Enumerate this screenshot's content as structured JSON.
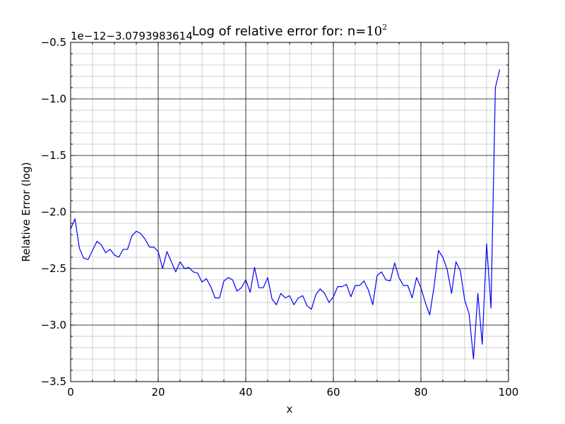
{
  "chart_data": {
    "type": "line",
    "title_prefix": "Log of relative error for: n=",
    "title_base": "10",
    "title_exponent": "2",
    "xlabel": "x",
    "ylabel": "Relative Error (log)",
    "y_offset_label": "1e−12−3.0793983614",
    "xlim": [
      0,
      100
    ],
    "ylim": [
      -3.5,
      -0.5
    ],
    "x_ticks": [
      0,
      20,
      40,
      60,
      80,
      100
    ],
    "x_tick_labels": [
      "0",
      "20",
      "40",
      "60",
      "80",
      "100"
    ],
    "y_ticks": [
      -3.5,
      -3.0,
      -2.5,
      -2.0,
      -1.5,
      -1.0,
      -0.5
    ],
    "y_tick_labels": [
      "−3.5",
      "−3.0",
      "−2.5",
      "−2.0",
      "−1.5",
      "−1.0",
      "−0.5"
    ],
    "grid": true,
    "series": [
      {
        "color": "#0000ff",
        "x": [
          0,
          1,
          2,
          3,
          4,
          5,
          6,
          7,
          8,
          9,
          10,
          11,
          12,
          13,
          14,
          15,
          16,
          17,
          18,
          19,
          20,
          21,
          22,
          23,
          24,
          25,
          26,
          27,
          28,
          29,
          30,
          31,
          32,
          33,
          34,
          35,
          36,
          37,
          38,
          39,
          40,
          41,
          42,
          43,
          44,
          45,
          46,
          47,
          48,
          49,
          50,
          51,
          52,
          53,
          54,
          55,
          56,
          57,
          58,
          59,
          60,
          61,
          62,
          63,
          64,
          65,
          66,
          67,
          68,
          69,
          70,
          71,
          72,
          73,
          74,
          75,
          76,
          77,
          78,
          79,
          80,
          81,
          82,
          83,
          84,
          85,
          86,
          87,
          88,
          89,
          90,
          91,
          92,
          93,
          94,
          95,
          96,
          97,
          98
        ],
        "y": [
          -2.15,
          -2.06,
          -2.32,
          -2.41,
          -2.42,
          -2.34,
          -2.26,
          -2.29,
          -2.36,
          -2.33,
          -2.38,
          -2.4,
          -2.33,
          -2.33,
          -2.21,
          -2.17,
          -2.19,
          -2.24,
          -2.31,
          -2.31,
          -2.35,
          -2.5,
          -2.35,
          -2.44,
          -2.53,
          -2.44,
          -2.5,
          -2.49,
          -2.53,
          -2.54,
          -2.62,
          -2.59,
          -2.66,
          -2.76,
          -2.76,
          -2.61,
          -2.58,
          -2.6,
          -2.7,
          -2.67,
          -2.6,
          -2.71,
          -2.49,
          -2.67,
          -2.67,
          -2.58,
          -2.77,
          -2.82,
          -2.72,
          -2.76,
          -2.74,
          -2.82,
          -2.76,
          -2.74,
          -2.83,
          -2.86,
          -2.73,
          -2.68,
          -2.72,
          -2.8,
          -2.75,
          -2.66,
          -2.66,
          -2.64,
          -2.75,
          -2.65,
          -2.65,
          -2.61,
          -2.69,
          -2.82,
          -2.56,
          -2.53,
          -2.6,
          -2.61,
          -2.45,
          -2.58,
          -2.65,
          -2.65,
          -2.76,
          -2.58,
          -2.67,
          -2.8,
          -2.91,
          -2.66,
          -2.34,
          -2.4,
          -2.51,
          -2.72,
          -2.44,
          -2.52,
          -2.78,
          -2.9,
          -3.3,
          -2.72,
          -3.17,
          -2.28,
          -2.85,
          -0.9,
          -0.74
        ]
      }
    ]
  }
}
